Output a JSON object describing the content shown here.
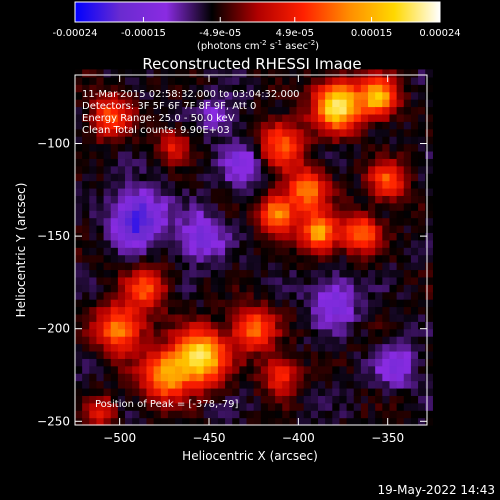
{
  "colorbar": {
    "tick_labels": [
      "-0.00024",
      "-0.00015",
      "-4.9e-05",
      "4.9e-05",
      "0.00015",
      "0.00024"
    ],
    "tick_values": [
      -0.00024,
      -0.00015,
      -4.9e-05,
      4.9e-05,
      0.00015,
      0.00024
    ],
    "range": [
      -0.00024,
      0.00024
    ],
    "units_parts": [
      "(photons cm",
      "-2",
      " s",
      "-1",
      " asec",
      "-2",
      ")"
    ]
  },
  "title": "Reconstructed RHESSI Image",
  "annotation_lines": [
    "11-Mar-2015 02:58:32.000 to 03:04:32.000",
    "Detectors: 3F 5F 6F 7F 8F 9F, Att 0",
    "Energy Range: 25.0 - 50.0 keV",
    "Clean     Total counts: 9.90E+03"
  ],
  "peak_label": "Position of Peak = [-378,-79]",
  "footer_date": "19-May-2022 14:43",
  "chart_data": {
    "type": "heatmap",
    "title": "Reconstructed RHESSI Image",
    "xlabel": "Heliocentric X (arcsec)",
    "ylabel": "Heliocentric Y (arcsec)",
    "xlim": [
      -525,
      -328
    ],
    "ylim": [
      -252,
      -63
    ],
    "x_ticks": [
      -500,
      -450,
      -400,
      -350
    ],
    "x_tick_labels": [
      "−500",
      "−450",
      "−400",
      "−350"
    ],
    "y_ticks": [
      -250,
      -200,
      -150,
      -100
    ],
    "y_tick_labels": [
      "−250",
      "−200",
      "−150",
      "−100"
    ],
    "colormap": "blue-purple-red-yellow-white",
    "color_stops": [
      "#0000ff",
      "#6a2bd0",
      "#8a2be2",
      "#000000",
      "#b00000",
      "#ff2000",
      "#ff8c00",
      "#ffd800",
      "#ffffff"
    ],
    "grid_resolution_arcsec": 4,
    "sources": [
      {
        "x": -378,
        "y": -79,
        "peak": 1.0,
        "sigma": 9
      },
      {
        "x": -355,
        "y": -75,
        "peak": 0.8,
        "sigma": 7
      },
      {
        "x": -410,
        "y": -100,
        "peak": 0.55,
        "sigma": 9
      },
      {
        "x": -395,
        "y": -125,
        "peak": 0.6,
        "sigma": 8
      },
      {
        "x": -412,
        "y": -138,
        "peak": 0.7,
        "sigma": 7
      },
      {
        "x": -388,
        "y": -148,
        "peak": 0.75,
        "sigma": 7
      },
      {
        "x": -365,
        "y": -148,
        "peak": 0.6,
        "sigma": 7
      },
      {
        "x": -350,
        "y": -120,
        "peak": 0.55,
        "sigma": 7
      },
      {
        "x": -455,
        "y": -215,
        "peak": 0.95,
        "sigma": 10
      },
      {
        "x": -475,
        "y": -225,
        "peak": 0.7,
        "sigma": 9
      },
      {
        "x": -500,
        "y": -200,
        "peak": 0.65,
        "sigma": 9
      },
      {
        "x": -485,
        "y": -178,
        "peak": 0.5,
        "sigma": 8
      },
      {
        "x": -425,
        "y": -200,
        "peak": 0.6,
        "sigma": 8
      },
      {
        "x": -410,
        "y": -225,
        "peak": 0.45,
        "sigma": 7
      },
      {
        "x": -505,
        "y": -85,
        "peak": 0.5,
        "sigma": 8
      },
      {
        "x": -470,
        "y": -100,
        "peak": 0.35,
        "sigma": 6
      },
      {
        "x": -510,
        "y": -245,
        "peak": 0.35,
        "sigma": 6
      },
      {
        "x": -490,
        "y": -140,
        "peak": -0.55,
        "sigma": 10
      },
      {
        "x": -455,
        "y": -150,
        "peak": -0.35,
        "sigma": 9
      },
      {
        "x": -430,
        "y": -110,
        "peak": -0.3,
        "sigma": 9
      },
      {
        "x": -380,
        "y": -185,
        "peak": -0.35,
        "sigma": 9
      },
      {
        "x": -345,
        "y": -220,
        "peak": -0.3,
        "sigma": 8
      },
      {
        "x": -445,
        "y": -85,
        "peak": -0.25,
        "sigma": 7
      }
    ]
  }
}
